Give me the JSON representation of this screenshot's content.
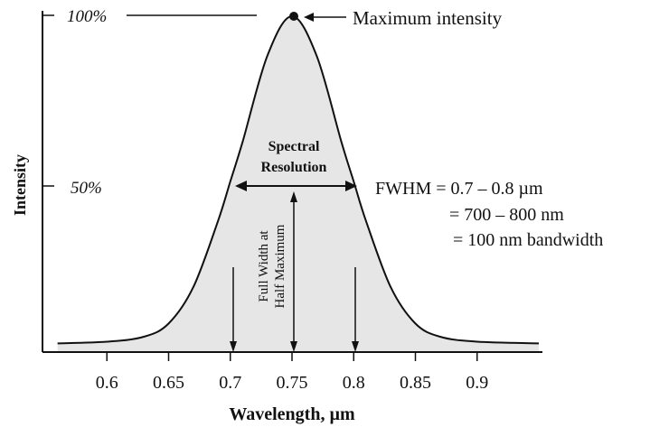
{
  "figure": {
    "ylabel": "Intensity",
    "xlabel": "Wavelength, µm",
    "y_labels": {
      "top": "100%",
      "mid": "50%"
    },
    "x_ticks": [
      "0.6",
      "0.65",
      "0.7",
      "0.75",
      "0.8",
      "0.85",
      "0.9"
    ],
    "max_label": "Maximum intensity",
    "spectral_resolution": [
      "Spectral",
      "Resolution"
    ],
    "fwhm_vertical": [
      "Full Width at",
      "Half Maximum"
    ],
    "fwhm_lines": [
      "FWHM = 0.7 – 0.8 µm",
      "= 700 – 800 nm",
      "= 100 nm bandwidth"
    ]
  },
  "chart_data": {
    "type": "area",
    "x": [
      0.56,
      0.6,
      0.63,
      0.65,
      0.67,
      0.69,
      0.7,
      0.71,
      0.73,
      0.75,
      0.77,
      0.79,
      0.8,
      0.81,
      0.83,
      0.85,
      0.87,
      0.9,
      0.95
    ],
    "y": [
      1,
      1.5,
      3,
      7,
      18,
      38,
      50,
      62,
      88,
      100,
      88,
      62,
      50,
      38,
      18,
      7,
      3,
      1.5,
      1
    ],
    "ylim": [
      0,
      100
    ],
    "xlim": [
      0.55,
      0.95
    ],
    "fill": "#e6e6e6",
    "line": "#111111"
  }
}
